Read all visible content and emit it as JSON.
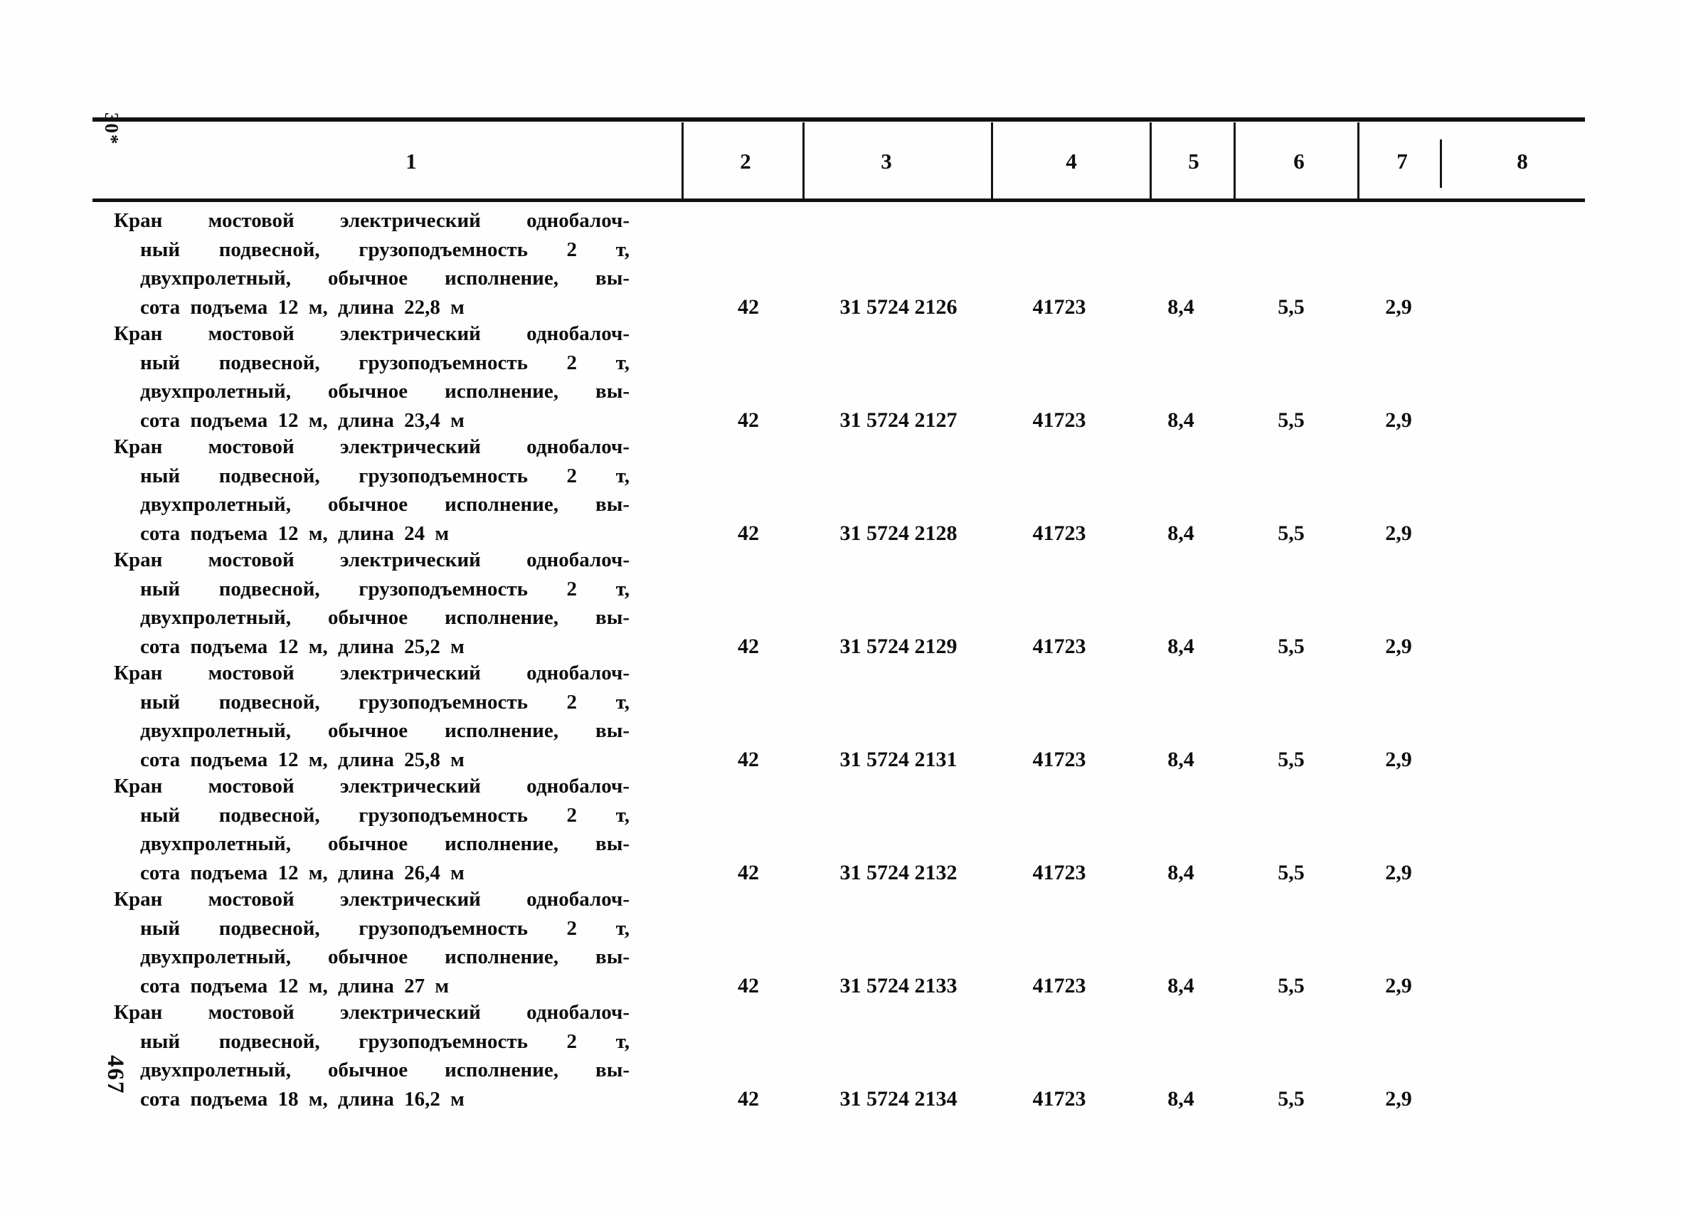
{
  "colors": {
    "paper": "#fefefe",
    "ink": "#0e0e0e"
  },
  "page": {
    "top_marginal": "30*",
    "page_number": "467"
  },
  "table": {
    "headers": [
      "1",
      "2",
      "3",
      "4",
      "5",
      "6",
      "7",
      "8"
    ],
    "rows": [
      {
        "desc": [
          "Кран мостовой электрический однобалоч-",
          "ный подвесной, грузоподъемность 2 т,",
          "двухпролетный, обычное исполнение, вы-",
          "сота подъема 12 м, длина 22,8 м"
        ],
        "values": [
          "42",
          "31 5724 2126",
          "41723",
          "8,4",
          "5,5",
          "2,9"
        ]
      },
      {
        "desc": [
          "Кран мостовой электрический однобалоч-",
          "ный подвесной, грузоподъемность 2 т,",
          "двухпролетный, обычное исполнение, вы-",
          "сота подъема 12 м, длина 23,4 м"
        ],
        "values": [
          "42",
          "31 5724 2127",
          "41723",
          "8,4",
          "5,5",
          "2,9"
        ]
      },
      {
        "desc": [
          "Кран мостовой электрический однобалоч-",
          "ный подвесной, грузоподъемность 2 т,",
          "двухпролетный, обычное исполнение, вы-",
          "сота подъема 12 м, длина 24 м"
        ],
        "values": [
          "42",
          "31 5724 2128",
          "41723",
          "8,4",
          "5,5",
          "2,9"
        ]
      },
      {
        "desc": [
          "Кран мостовой электрический однобалоч-",
          "ный подвесной, грузоподъемность 2 т,",
          "двухпролетный, обычное исполнение, вы-",
          "сота подъема 12 м, длина 25,2 м"
        ],
        "values": [
          "42",
          "31 5724 2129",
          "41723",
          "8,4",
          "5,5",
          "2,9"
        ]
      },
      {
        "desc": [
          "Кран мостовой электрический однобалоч-",
          "ный подвесной, грузоподъемность 2 т,",
          "двухпролетный, обычное исполнение, вы-",
          "сота подъема 12 м, длина 25,8 м"
        ],
        "values": [
          "42",
          "31 5724 2131",
          "41723",
          "8,4",
          "5,5",
          "2,9"
        ]
      },
      {
        "desc": [
          "Кран мостовой электрический однобалоч-",
          "ный подвесной, грузоподъемность 2 т,",
          "двухпролетный, обычное исполнение, вы-",
          "сота подъема 12 м, длина 26,4 м"
        ],
        "values": [
          "42",
          "31 5724 2132",
          "41723",
          "8,4",
          "5,5",
          "2,9"
        ]
      },
      {
        "desc": [
          "Кран мостовой электрический однобалоч-",
          "ный подвесной, грузоподъемность 2 т,",
          "двухпролетный, обычное исполнение, вы-",
          "сота подъема 12 м, длина 27 м"
        ],
        "values": [
          "42",
          "31 5724 2133",
          "41723",
          "8,4",
          "5,5",
          "2,9"
        ]
      },
      {
        "desc": [
          "Кран мостовой электрический однобалоч-",
          "ный подвесной, грузоподъемность 2 т,",
          "двухпролетный, обычное исполнение, вы-",
          "сота подъема 18 м, длина 16,2 м"
        ],
        "values": [
          "42",
          "31 5724 2134",
          "41723",
          "8,4",
          "5,5",
          "2,9"
        ]
      }
    ]
  }
}
